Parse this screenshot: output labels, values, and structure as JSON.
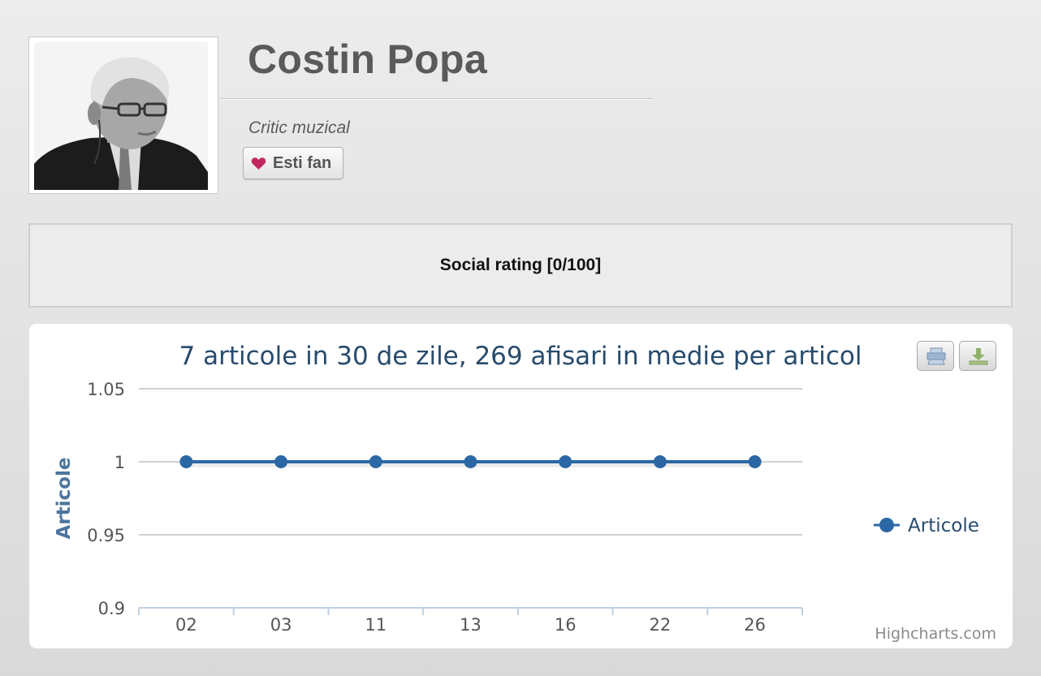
{
  "profile": {
    "name": "Costin Popa",
    "role": "Critic muzical",
    "fan_button_label": "Esti fan"
  },
  "social": {
    "label": "Social rating [0/100]"
  },
  "chart_toolbar": {
    "print_icon": "print-icon",
    "export_icon": "download-icon"
  },
  "credits": "Highcharts.com",
  "colors": {
    "series": "#2b67a4",
    "title": "#274b6d",
    "heart": "#c2285f"
  },
  "chart_data": {
    "type": "line",
    "title": "7 articole in 30 de zile, 269 afisari in medie per articol",
    "ylabel": "Articole",
    "xlabel": "",
    "categories": [
      "02",
      "03",
      "11",
      "13",
      "16",
      "22",
      "26"
    ],
    "series": [
      {
        "name": "Articole",
        "values": [
          1,
          1,
          1,
          1,
          1,
          1,
          1
        ]
      }
    ],
    "ylim": [
      0.9,
      1.05
    ],
    "yticks": [
      "1.05",
      "1",
      "0.95",
      "0.9"
    ],
    "grid": true,
    "legend": "right"
  }
}
